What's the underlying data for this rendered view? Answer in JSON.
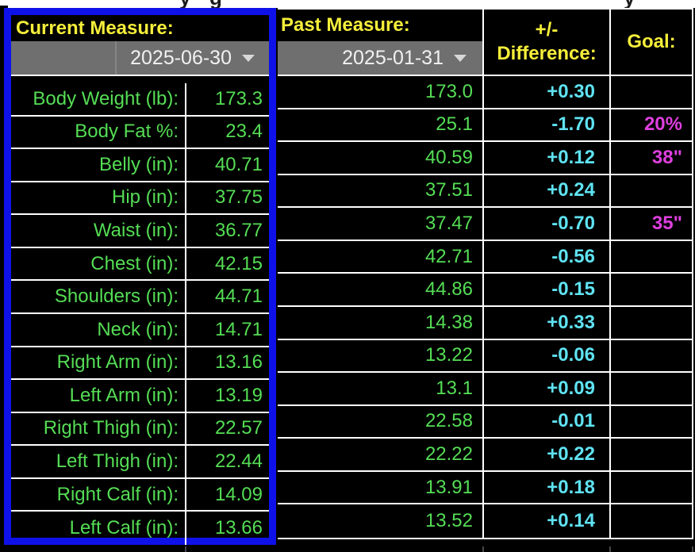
{
  "colors": {
    "selection-blue": "#0f12e8",
    "yellow": "#f5ee3a",
    "green": "#55dd55",
    "cyan": "#5fe3f2",
    "magenta": "#de3fde",
    "gray-cell": "#6f6f6f"
  },
  "title_strip": {
    "fragments": [
      "y",
      "g",
      "y"
    ]
  },
  "table": {
    "current": {
      "header": "Current Measure:",
      "date": "2025-06-30"
    },
    "past": {
      "header": "Past Measure:",
      "date": "2025-01-31"
    },
    "difference_header_line1": "+/-",
    "difference_header_line2": "Difference:",
    "goal_header": "Goal:",
    "rows": [
      {
        "label": "Body Weight (lb):",
        "current": "173.3",
        "past": "173.0",
        "diff": "+0.30",
        "goal": ""
      },
      {
        "label": "Body Fat %:",
        "current": "23.4",
        "past": "25.1",
        "diff": "-1.70",
        "goal": "20%"
      },
      {
        "label": "Belly (in):",
        "current": "40.71",
        "past": "40.59",
        "diff": "+0.12",
        "goal": "38\""
      },
      {
        "label": "Hip (in):",
        "current": "37.75",
        "past": "37.51",
        "diff": "+0.24",
        "goal": ""
      },
      {
        "label": "Waist (in):",
        "current": "36.77",
        "past": "37.47",
        "diff": "-0.70",
        "goal": "35\""
      },
      {
        "label": "Chest (in):",
        "current": "42.15",
        "past": "42.71",
        "diff": "-0.56",
        "goal": ""
      },
      {
        "label": "Shoulders (in):",
        "current": "44.71",
        "past": "44.86",
        "diff": "-0.15",
        "goal": ""
      },
      {
        "label": "Neck (in):",
        "current": "14.71",
        "past": "14.38",
        "diff": "+0.33",
        "goal": ""
      },
      {
        "label": "Right Arm (in):",
        "current": "13.16",
        "past": "13.22",
        "diff": "-0.06",
        "goal": ""
      },
      {
        "label": "Left Arm (in):",
        "current": "13.19",
        "past": "13.1",
        "diff": "+0.09",
        "goal": ""
      },
      {
        "label": "Right Thigh (in):",
        "current": "22.57",
        "past": "22.58",
        "diff": "-0.01",
        "goal": ""
      },
      {
        "label": "Left Thigh (in):",
        "current": "22.44",
        "past": "22.22",
        "diff": "+0.22",
        "goal": ""
      },
      {
        "label": "Right Calf (in):",
        "current": "14.09",
        "past": "13.91",
        "diff": "+0.18",
        "goal": ""
      },
      {
        "label": "Left Calf (in):",
        "current": "13.66",
        "past": "13.52",
        "diff": "+0.14",
        "goal": ""
      }
    ]
  }
}
